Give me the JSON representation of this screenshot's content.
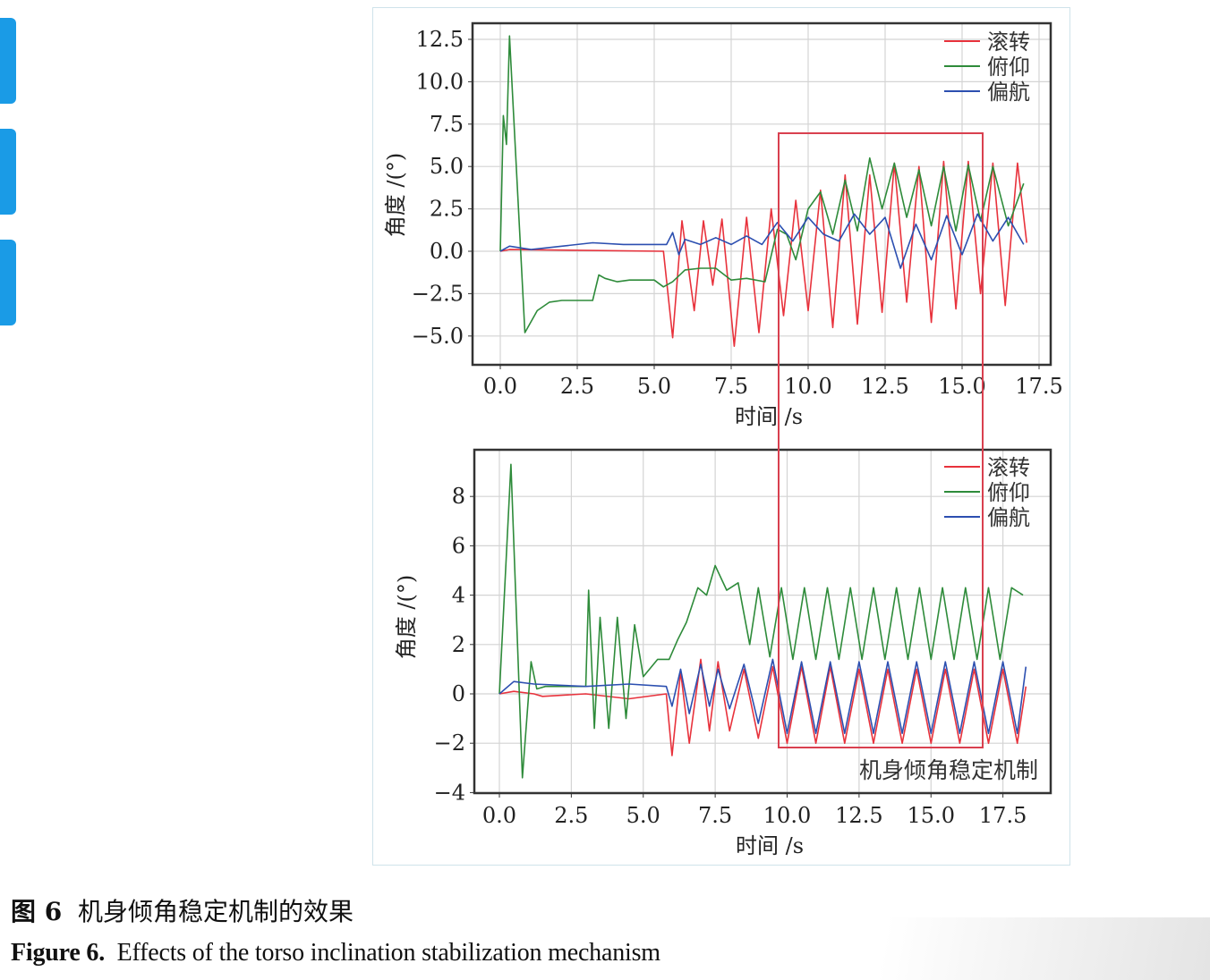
{
  "figure": {
    "caption_cn_label": "图 6",
    "caption_cn_text": "机身倾角稳定机制的效果",
    "caption_en_label": "Figure 6.",
    "caption_en_text": "Effects of the torso inclination stabilization mechanism",
    "annotation_box_label": "机身倾角稳定机制",
    "annotation_box_color": "#d9404f"
  },
  "colors": {
    "roll": "#e8323c",
    "pitch": "#2e8b3a",
    "yaw": "#2c4fb0",
    "grid": "#d4d4d4",
    "axis": "#333333",
    "side_tab": "#1a9be6"
  },
  "chart_data": [
    {
      "type": "line",
      "title": "",
      "xlabel": "时间 /s",
      "ylabel": "角度 /(°)",
      "xlim": [
        -0.9,
        17.9
      ],
      "ylim": [
        -6.8,
        13.4
      ],
      "xticks": [
        "0.0",
        "2.5",
        "5.0",
        "7.5",
        "10.0",
        "12.5",
        "15.0",
        "17.5"
      ],
      "yticks": [
        "12.5",
        "10.0",
        "7.5",
        "5.0",
        "2.5",
        "0.0",
        "−2.5",
        "−5.0"
      ],
      "grid": true,
      "legend": {
        "position": "upper right",
        "entries": [
          "滚转",
          "俯仰",
          "偏航"
        ]
      },
      "series": [
        {
          "name": "滚转",
          "color": "#e8323c",
          "x": [
            0,
            0.3,
            5.3,
            5.6,
            5.9,
            6.3,
            6.6,
            6.9,
            7.2,
            7.6,
            8.0,
            8.4,
            8.8,
            9.2,
            9.6,
            10.0,
            10.4,
            10.8,
            11.2,
            11.6,
            12.0,
            12.4,
            12.8,
            13.2,
            13.6,
            14.0,
            14.4,
            14.8,
            15.2,
            15.6,
            16.0,
            16.4,
            16.8,
            17.1
          ],
          "values": [
            0,
            0.1,
            0.0,
            -5.1,
            1.8,
            -3.5,
            1.8,
            -2.0,
            1.9,
            -5.6,
            2.0,
            -4.8,
            2.5,
            -3.8,
            3.0,
            -3.5,
            3.6,
            -4.5,
            4.5,
            -4.3,
            4.5,
            -3.6,
            5.2,
            -3.0,
            5.0,
            -4.2,
            5.3,
            -3.4,
            5.3,
            -2.5,
            5.2,
            -3.2,
            5.2,
            0.5
          ]
        },
        {
          "name": "俯仰",
          "color": "#2e8b3a",
          "x": [
            0,
            0.1,
            0.2,
            0.3,
            0.8,
            1.2,
            1.6,
            2.0,
            3.0,
            3.2,
            3.4,
            3.8,
            4.2,
            5.0,
            5.3,
            5.6,
            6.0,
            6.5,
            7.0,
            7.5,
            8.0,
            8.6,
            9.0,
            9.3,
            9.6,
            10.0,
            10.4,
            10.8,
            11.2,
            11.6,
            12.0,
            12.4,
            12.8,
            13.2,
            13.6,
            14.0,
            14.4,
            14.8,
            15.2,
            15.6,
            16.0,
            16.5,
            17.0
          ],
          "values": [
            0,
            8.0,
            6.3,
            12.7,
            -4.8,
            -3.5,
            -3.0,
            -2.9,
            -2.9,
            -1.4,
            -1.6,
            -1.8,
            -1.7,
            -1.7,
            -2.1,
            -1.8,
            -1.1,
            -1.0,
            -1.0,
            -1.7,
            -1.6,
            -1.8,
            1.3,
            1.0,
            -0.5,
            2.5,
            3.5,
            1.0,
            4.2,
            1.2,
            5.5,
            2.5,
            5.2,
            2.0,
            4.8,
            1.5,
            5.0,
            1.2,
            5.1,
            1.8,
            5.0,
            1.5,
            4.0
          ]
        },
        {
          "name": "偏航",
          "color": "#2c4fb0",
          "x": [
            0,
            0.3,
            1.0,
            2.0,
            3.0,
            4.0,
            5.0,
            5.4,
            5.6,
            5.8,
            6.0,
            6.5,
            7.0,
            7.5,
            8.0,
            8.5,
            9.0,
            9.5,
            10.0,
            10.5,
            11.0,
            11.5,
            12.0,
            12.5,
            13.0,
            13.5,
            14.0,
            14.5,
            15.0,
            15.5,
            16.0,
            16.5,
            17.0
          ],
          "values": [
            0,
            0.3,
            0.1,
            0.3,
            0.5,
            0.4,
            0.4,
            0.4,
            1.1,
            -0.2,
            0.7,
            0.4,
            0.8,
            0.4,
            0.9,
            0.4,
            1.7,
            0.6,
            2.0,
            1.0,
            0.6,
            2.2,
            1.0,
            2.0,
            -1.0,
            1.6,
            -0.5,
            2.1,
            -0.2,
            2.2,
            0.6,
            2.0,
            0.4
          ]
        }
      ]
    },
    {
      "type": "line",
      "title": "",
      "xlabel": "时间 /s",
      "ylabel": "角度 /(°)",
      "xlim": [
        -0.9,
        19.1
      ],
      "ylim": [
        -4.0,
        9.6
      ],
      "xticks": [
        "0.0",
        "2.5",
        "5.0",
        "7.5",
        "10.0",
        "12.5",
        "15.0",
        "17.5"
      ],
      "yticks": [
        "8",
        "6",
        "4",
        "2",
        "0",
        "−2",
        "−4"
      ],
      "grid": true,
      "legend": {
        "position": "upper right",
        "entries": [
          "滚转",
          "俯仰",
          "偏航"
        ]
      },
      "annotation": "机身倾角稳定机制",
      "series": [
        {
          "name": "滚转",
          "color": "#e8323c",
          "x": [
            0,
            0.5,
            1.2,
            1.5,
            3.0,
            4.5,
            5.8,
            6.0,
            6.3,
            6.6,
            7.0,
            7.3,
            7.6,
            8.0,
            8.5,
            9.0,
            9.5,
            10.0,
            10.5,
            11.0,
            11.5,
            12.0,
            12.5,
            13.0,
            13.5,
            14.0,
            14.5,
            15.0,
            15.5,
            16.0,
            16.5,
            17.0,
            17.5,
            18.0,
            18.3
          ],
          "values": [
            0,
            0.1,
            0.0,
            -0.1,
            0.0,
            -0.2,
            0.0,
            -2.5,
            0.9,
            -2.0,
            1.4,
            -1.5,
            1.3,
            -1.5,
            1.0,
            -1.8,
            1.1,
            -2.0,
            1.1,
            -2.0,
            1.1,
            -2.0,
            1.0,
            -2.0,
            1.0,
            -2.0,
            1.0,
            -2.0,
            1.0,
            -2.0,
            1.0,
            -2.0,
            1.0,
            -2.0,
            0.3
          ]
        },
        {
          "name": "俯仰",
          "color": "#2e8b3a",
          "x": [
            0,
            0.4,
            0.8,
            1.1,
            1.3,
            1.6,
            3.0,
            3.1,
            3.3,
            3.5,
            3.8,
            4.1,
            4.4,
            4.7,
            5.0,
            5.5,
            5.9,
            6.2,
            6.5,
            6.9,
            7.2,
            7.5,
            7.9,
            8.3,
            8.7,
            9.0,
            9.4,
            9.8,
            10.2,
            10.6,
            11.0,
            11.4,
            11.8,
            12.2,
            12.6,
            13.0,
            13.4,
            13.8,
            14.2,
            14.6,
            15.0,
            15.4,
            15.8,
            16.2,
            16.6,
            17.0,
            17.4,
            17.8,
            18.2
          ],
          "values": [
            0,
            9.3,
            -3.4,
            1.3,
            0.2,
            0.3,
            0.3,
            4.2,
            -1.4,
            3.1,
            -1.4,
            3.1,
            -1.0,
            2.8,
            0.7,
            1.4,
            1.4,
            2.2,
            2.9,
            4.3,
            4.0,
            5.2,
            4.2,
            4.5,
            2.0,
            4.3,
            1.5,
            4.3,
            1.4,
            4.3,
            1.4,
            4.3,
            1.4,
            4.3,
            1.4,
            4.3,
            1.4,
            4.3,
            1.4,
            4.3,
            1.4,
            4.3,
            1.4,
            4.3,
            1.4,
            4.3,
            1.4,
            4.3,
            4.0
          ]
        },
        {
          "name": "偏航",
          "color": "#2c4fb0",
          "x": [
            0,
            0.5,
            1.2,
            3.0,
            4.5,
            5.8,
            6.0,
            6.3,
            6.6,
            7.0,
            7.3,
            7.6,
            8.0,
            8.5,
            9.0,
            9.5,
            10.0,
            10.5,
            11.0,
            11.5,
            12.0,
            12.5,
            13.0,
            13.5,
            14.0,
            14.5,
            15.0,
            15.5,
            16.0,
            16.5,
            17.0,
            17.5,
            18.0,
            18.3
          ],
          "values": [
            0,
            0.5,
            0.4,
            0.3,
            0.4,
            0.3,
            -0.5,
            1.0,
            -0.8,
            1.2,
            -0.5,
            1.0,
            -0.6,
            1.2,
            -1.2,
            1.4,
            -1.6,
            1.3,
            -1.6,
            1.3,
            -1.6,
            1.3,
            -1.6,
            1.3,
            -1.6,
            1.3,
            -1.6,
            1.3,
            -1.6,
            1.3,
            -1.6,
            1.3,
            -1.6,
            1.1
          ]
        }
      ]
    }
  ]
}
